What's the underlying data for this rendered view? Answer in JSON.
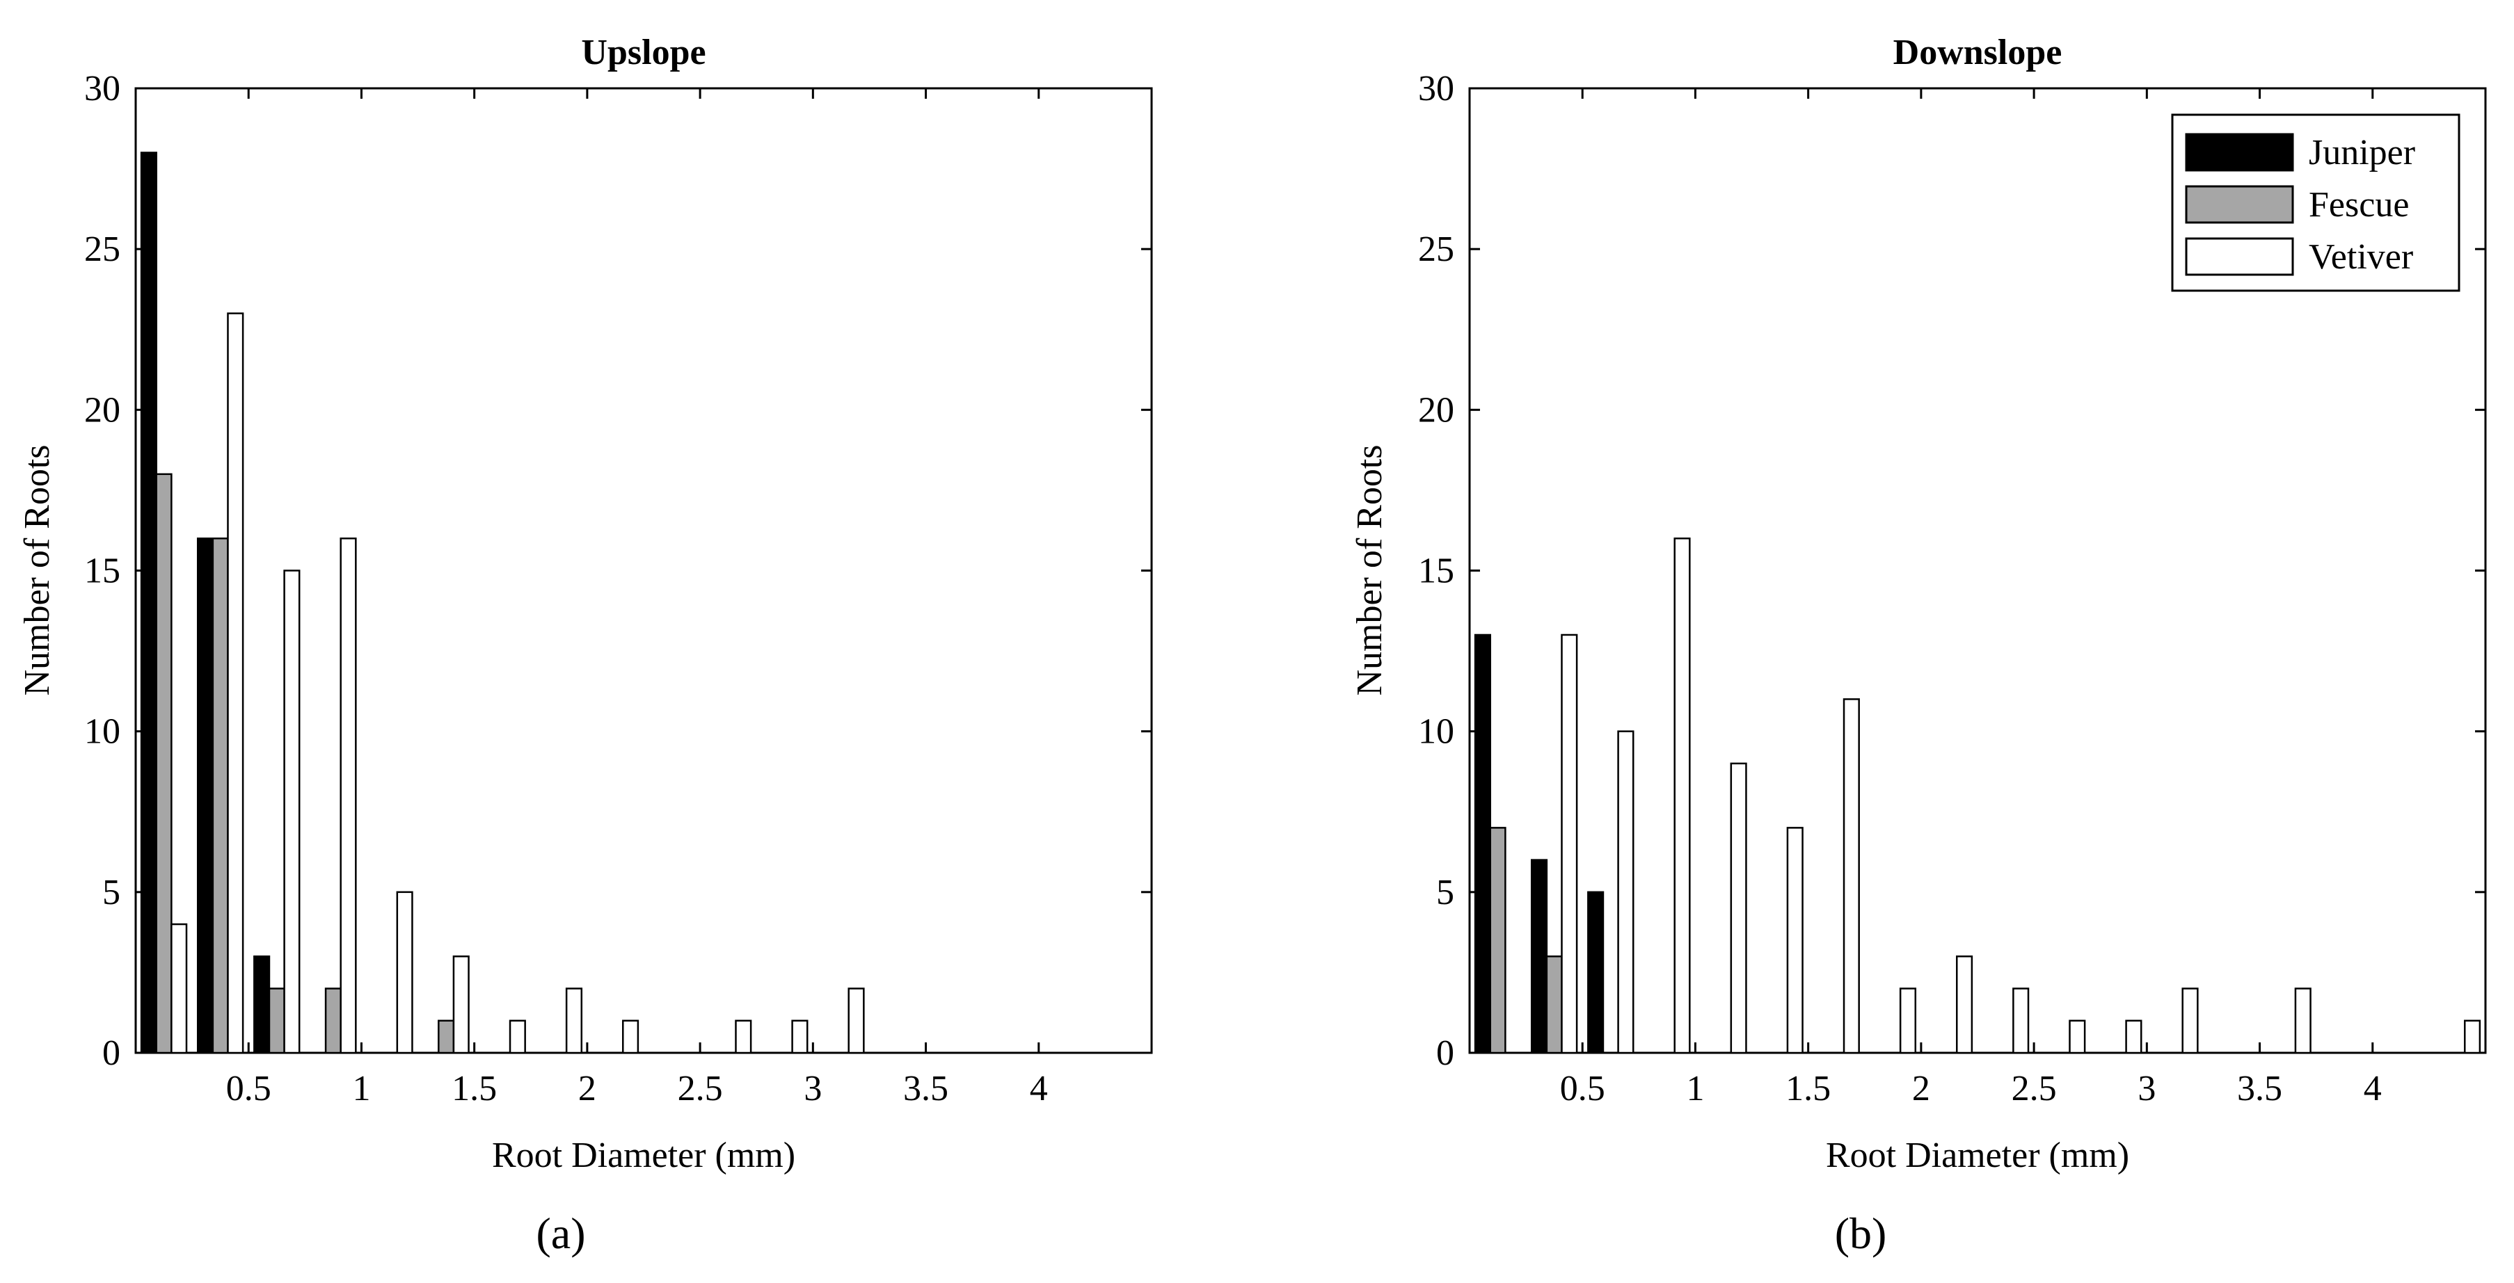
{
  "figure": {
    "panel_labels": [
      "(a)",
      "(b)"
    ]
  },
  "chart_data": [
    {
      "type": "bar",
      "title": "Upslope",
      "xlabel": "Root Diameter (mm)",
      "ylabel": "Number of Roots",
      "xlim": [
        0,
        4.5
      ],
      "ylim": [
        0,
        30
      ],
      "xticks": [
        0.5,
        1,
        1.5,
        2,
        2.5,
        3,
        3.5,
        4
      ],
      "yticks": [
        0,
        5,
        10,
        15,
        20,
        25,
        30
      ],
      "grid": false,
      "legend": null,
      "bin_width": 0.25,
      "x": [
        0.125,
        0.375,
        0.625,
        0.875,
        1.125,
        1.375,
        1.625,
        1.875,
        2.125,
        2.375,
        2.625,
        2.875,
        3.125,
        3.375,
        3.625,
        3.875,
        4.125,
        4.375
      ],
      "series": [
        {
          "name": "Juniper",
          "color": "#000000",
          "values": [
            28,
            16,
            3,
            0,
            0,
            0,
            0,
            0,
            0,
            0,
            0,
            0,
            0,
            0,
            0,
            0,
            0,
            0
          ]
        },
        {
          "name": "Fescue",
          "color": "#a6a6a6",
          "values": [
            18,
            16,
            2,
            2,
            0,
            1,
            0,
            0,
            0,
            0,
            0,
            0,
            0,
            0,
            0,
            0,
            0,
            0
          ]
        },
        {
          "name": "Vetiver",
          "color": "#ffffff",
          "values": [
            4,
            23,
            15,
            16,
            5,
            3,
            1,
            2,
            1,
            0,
            1,
            1,
            2,
            0,
            0,
            0,
            0,
            0
          ]
        }
      ]
    },
    {
      "type": "bar",
      "title": "Downslope",
      "xlabel": "Root Diameter (mm)",
      "ylabel": "Number of Roots",
      "xlim": [
        0,
        4.5
      ],
      "ylim": [
        0,
        30
      ],
      "xticks": [
        0.5,
        1,
        1.5,
        2,
        2.5,
        3,
        3.5,
        4
      ],
      "yticks": [
        0,
        5,
        10,
        15,
        20,
        25,
        30
      ],
      "grid": false,
      "legend": "top-right",
      "bin_width": 0.25,
      "x": [
        0.125,
        0.375,
        0.625,
        0.875,
        1.125,
        1.375,
        1.625,
        1.875,
        2.125,
        2.375,
        2.625,
        2.875,
        3.125,
        3.375,
        3.625,
        3.875,
        4.125,
        4.375
      ],
      "series": [
        {
          "name": "Juniper",
          "color": "#000000",
          "values": [
            13,
            6,
            5,
            0,
            0,
            0,
            0,
            0,
            0,
            0,
            0,
            0,
            0,
            0,
            0,
            0,
            0,
            0
          ]
        },
        {
          "name": "Fescue",
          "color": "#a6a6a6",
          "values": [
            7,
            3,
            0,
            0,
            0,
            0,
            0,
            0,
            0,
            0,
            0,
            0,
            0,
            0,
            0,
            0,
            0,
            0
          ]
        },
        {
          "name": "Vetiver",
          "color": "#ffffff",
          "values": [
            0,
            13,
            10,
            16,
            9,
            7,
            11,
            2,
            3,
            2,
            1,
            1,
            2,
            0,
            2,
            0,
            0,
            1
          ]
        }
      ]
    }
  ]
}
